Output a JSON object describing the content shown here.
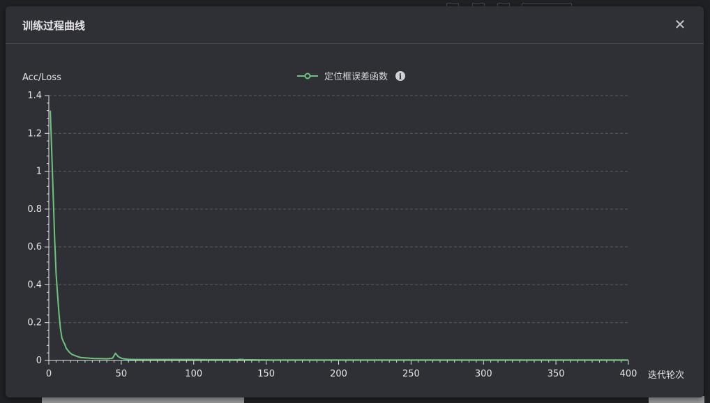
{
  "dialog": {
    "title": "训练过程曲线",
    "close_icon": "close-icon"
  },
  "colors": {
    "series": "#6cc57a",
    "grid": "#5a5c62",
    "axis": "#e6e6e8",
    "dialog_bg": "#2f3035"
  },
  "chart_data": {
    "type": "line",
    "ylabel": "Acc/Loss",
    "xlabel": "迭代轮次",
    "xlim": [
      0,
      400
    ],
    "ylim": [
      0,
      1.4
    ],
    "x_ticks": [
      0,
      50,
      100,
      150,
      200,
      250,
      300,
      350,
      400
    ],
    "y_ticks": [
      0,
      0.2,
      0.4,
      0.6,
      0.8,
      1,
      1.2,
      1.4
    ],
    "y_tick_labels": [
      "0",
      "0.2",
      "0.4",
      "0.6",
      "0.8",
      "1",
      "1.2",
      "1.4"
    ],
    "grid": "horizontal-dashed",
    "legend_position": "top-center",
    "legend_icon": "info-icon",
    "series": [
      {
        "name": "定位框误差函数",
        "color": "#6cc57a",
        "x": [
          1,
          2,
          3,
          4,
          5,
          6,
          7,
          8,
          9,
          10,
          11,
          12,
          13,
          14,
          15,
          16,
          18,
          20,
          22,
          25,
          28,
          30,
          32,
          35,
          40,
          44,
          46,
          48,
          50,
          52,
          55,
          60,
          70,
          80,
          100,
          110,
          120,
          130,
          132,
          135,
          150,
          200,
          250,
          300,
          350,
          400
        ],
        "y": [
          1.32,
          1.1,
          0.88,
          0.65,
          0.46,
          0.35,
          0.25,
          0.17,
          0.12,
          0.1,
          0.085,
          0.065,
          0.055,
          0.045,
          0.038,
          0.032,
          0.026,
          0.02,
          0.016,
          0.014,
          0.012,
          0.011,
          0.01,
          0.01,
          0.009,
          0.012,
          0.038,
          0.02,
          0.012,
          0.008,
          0.006,
          0.005,
          0.005,
          0.005,
          0.005,
          0.004,
          0.004,
          0.004,
          0.006,
          0.004,
          0.003,
          0.003,
          0.003,
          0.003,
          0.003,
          0.003
        ]
      }
    ]
  }
}
